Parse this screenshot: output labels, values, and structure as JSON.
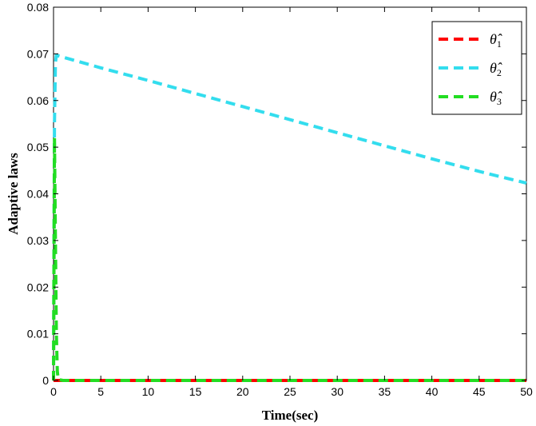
{
  "chart_data": {
    "type": "line",
    "title": "",
    "xlabel": "Time(sec)",
    "ylabel": "Adaptive laws",
    "xlim": [
      0,
      50
    ],
    "ylim": [
      0,
      0.08
    ],
    "xticks": [
      0,
      5,
      10,
      15,
      20,
      25,
      30,
      35,
      40,
      45,
      50
    ],
    "xtick_labels": [
      "0",
      "5",
      "10",
      "15",
      "20",
      "25",
      "30",
      "35",
      "40",
      "45",
      "50"
    ],
    "yticks": [
      0,
      0.01,
      0.02,
      0.03,
      0.04,
      0.05,
      0.06,
      0.07,
      0.08
    ],
    "ytick_labels": [
      "0",
      "0.01",
      "0.02",
      "0.03",
      "0.04",
      "0.05",
      "0.06",
      "0.07",
      "0.08"
    ],
    "grid": false,
    "legend_position": "top-right",
    "series": [
      {
        "name": "θ̂1",
        "symbol": "θ̂",
        "subscript": "1",
        "color": "#ff0000",
        "style": "dashed",
        "x": [
          0,
          0.1,
          0.3,
          1,
          5,
          10,
          20,
          30,
          40,
          50
        ],
        "y": [
          0,
          0,
          0,
          0,
          0,
          0,
          0,
          0,
          0,
          0
        ]
      },
      {
        "name": "θ̂2",
        "symbol": "θ̂",
        "subscript": "2",
        "color": "#33ddee",
        "style": "dashed",
        "x": [
          0,
          0.1,
          0.2,
          0.3,
          5,
          10,
          15,
          20,
          25,
          30,
          35,
          40,
          45,
          50
        ],
        "y": [
          0,
          0.055,
          0.068,
          0.0697,
          0.067,
          0.0643,
          0.0615,
          0.0587,
          0.0559,
          0.0531,
          0.0503,
          0.0475,
          0.0448,
          0.0423
        ]
      },
      {
        "name": "θ̂3",
        "symbol": "θ̂",
        "subscript": "3",
        "color": "#22dd22",
        "style": "dashed",
        "x": [
          0,
          0.1,
          0.2,
          0.3,
          0.4,
          0.5,
          1,
          5,
          10,
          20,
          30,
          40,
          50
        ],
        "y": [
          0,
          0.052,
          0.03,
          0.01,
          0.002,
          0.0002,
          0,
          0,
          0,
          0,
          0,
          0,
          0
        ]
      }
    ]
  }
}
